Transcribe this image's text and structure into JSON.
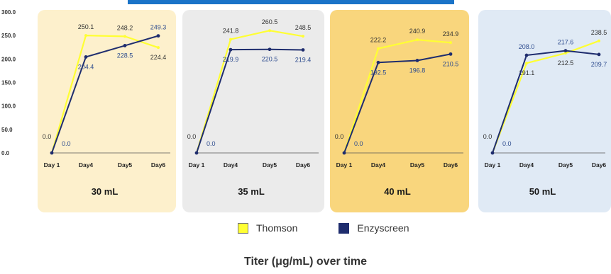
{
  "colors": {
    "thomson": "#ffff33",
    "enzyscreen": "#1f2d6e",
    "label_thomson": "#333333",
    "label_enzyscreen": "#2f4d8f",
    "title_blue": "#1a73c8"
  },
  "legend": {
    "thomson": "Thomson",
    "enzyscreen": "Enzyscreen"
  },
  "caption": "Titer (μg/mL) over time",
  "chart_data": {
    "type": "line",
    "title": "",
    "caption": "Titer (μg/mL) over time",
    "y_ticks": [
      "300.0",
      "250.0",
      "200.0",
      "150.0",
      "100.0",
      "50.0",
      "0.0"
    ],
    "ylim": [
      0,
      300
    ],
    "categories": [
      "Day 1",
      "Day4",
      "Day5",
      "Day6"
    ],
    "grid": false,
    "legend_position": "bottom",
    "panels": [
      {
        "label": "30 mL",
        "background": "#fdf0cc",
        "series": [
          {
            "name": "Thomson",
            "values": [
              0.0,
              250.1,
              248.2,
              224.4
            ],
            "labels": [
              "0.0",
              "250.1",
              "248.2",
              "224.4"
            ]
          },
          {
            "name": "Enzyscreen",
            "values": [
              0.0,
              204.4,
              228.5,
              249.3
            ],
            "labels": [
              "0.0",
              "204.4",
              "228.5",
              "249.3"
            ]
          }
        ]
      },
      {
        "label": "35 mL",
        "background": "#ebebeb",
        "series": [
          {
            "name": "Thomson",
            "values": [
              0.0,
              241.8,
              260.5,
              248.5
            ],
            "labels": [
              "0.0",
              "241.8",
              "260.5",
              "248.5"
            ]
          },
          {
            "name": "Enzyscreen",
            "values": [
              0.0,
              219.9,
              220.5,
              219.4
            ],
            "labels": [
              "0.0",
              "219.9",
              "220.5",
              "219.4"
            ]
          }
        ]
      },
      {
        "label": "40 mL",
        "background": "#f9d67d",
        "series": [
          {
            "name": "Thomson",
            "values": [
              0.0,
              222.2,
              240.9,
              234.9
            ],
            "labels": [
              "0.0",
              "222.2",
              "240.9",
              "234.9"
            ]
          },
          {
            "name": "Enzyscreen",
            "values": [
              0.0,
              192.5,
              196.8,
              210.5
            ],
            "labels": [
              "0.0",
              "192.5",
              "196.8",
              "210.5"
            ]
          }
        ]
      },
      {
        "label": "50 mL",
        "background": "#e0eaf5",
        "series": [
          {
            "name": "Thomson",
            "values": [
              0.0,
              191.1,
              212.5,
              238.5
            ],
            "labels": [
              "0.0",
              "191.1",
              "212.5",
              "238.5"
            ]
          },
          {
            "name": "Enzyscreen",
            "values": [
              0.0,
              208.0,
              217.6,
              209.7
            ],
            "labels": [
              "0.0",
              "208.0",
              "217.6",
              "209.7"
            ]
          }
        ]
      }
    ]
  }
}
